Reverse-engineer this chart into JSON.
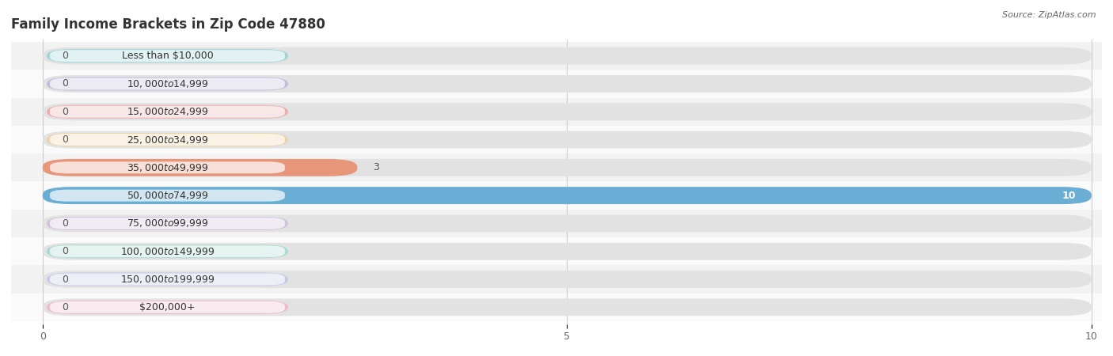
{
  "title": "Family Income Brackets in Zip Code 47880",
  "source": "Source: ZipAtlas.com",
  "categories": [
    "Less than $10,000",
    "$10,000 to $14,999",
    "$15,000 to $24,999",
    "$25,000 to $34,999",
    "$35,000 to $49,999",
    "$50,000 to $74,999",
    "$75,000 to $99,999",
    "$100,000 to $149,999",
    "$150,000 to $199,999",
    "$200,000+"
  ],
  "values": [
    0,
    0,
    0,
    0,
    3,
    10,
    0,
    0,
    0,
    0
  ],
  "bar_colors": [
    "#6dcbcb",
    "#a89fd8",
    "#f08888",
    "#f5c97a",
    "#e8967a",
    "#6aaed6",
    "#c4a8d8",
    "#7dd4c4",
    "#b0b8e8",
    "#f4a0b8"
  ],
  "xlim": [
    0,
    10
  ],
  "xticks": [
    0,
    5,
    10
  ],
  "title_fontsize": 12,
  "label_fontsize": 9,
  "value_fontsize": 9,
  "row_colors": [
    "#f2f2f2",
    "#fafafa"
  ]
}
